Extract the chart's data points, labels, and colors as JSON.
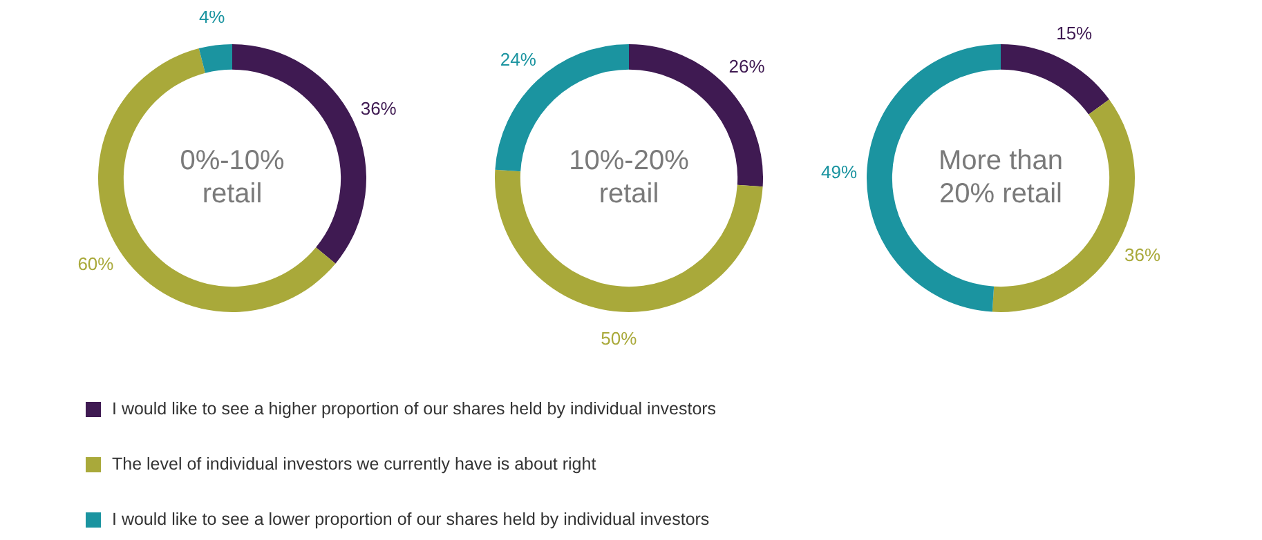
{
  "chart_data": [
    {
      "type": "donut",
      "title": "0%-10% retail",
      "categories": [
        "I would like to see a higher proportion of our shares held by individual investors",
        "The level of individual investors we currently have is about right",
        "I would like to see a lower proportion of our shares held by individual investors"
      ],
      "values": [
        36,
        60,
        4
      ],
      "colors": [
        "#3f1a52",
        "#a9a93a",
        "#1b94a0"
      ],
      "value_labels": [
        "36%",
        "60%",
        "4%"
      ],
      "legend": "bottom"
    },
    {
      "type": "donut",
      "title": "10%-20% retail",
      "categories": [
        null,
        null,
        null
      ],
      "values": [
        26,
        50,
        24
      ],
      "colors": [
        "#3f1a52",
        "#a9a93a",
        "#1b94a0"
      ],
      "value_labels": [
        "26%",
        "50%",
        "24%"
      ]
    },
    {
      "type": "donut",
      "title": "More than 20% retail",
      "categories": [
        null,
        null,
        null
      ],
      "values": [
        15,
        36,
        49
      ],
      "colors": [
        "#3f1a52",
        "#a9a93a",
        "#1b94a0"
      ],
      "value_labels": [
        "15%",
        "36%",
        "49%"
      ]
    }
  ]
}
